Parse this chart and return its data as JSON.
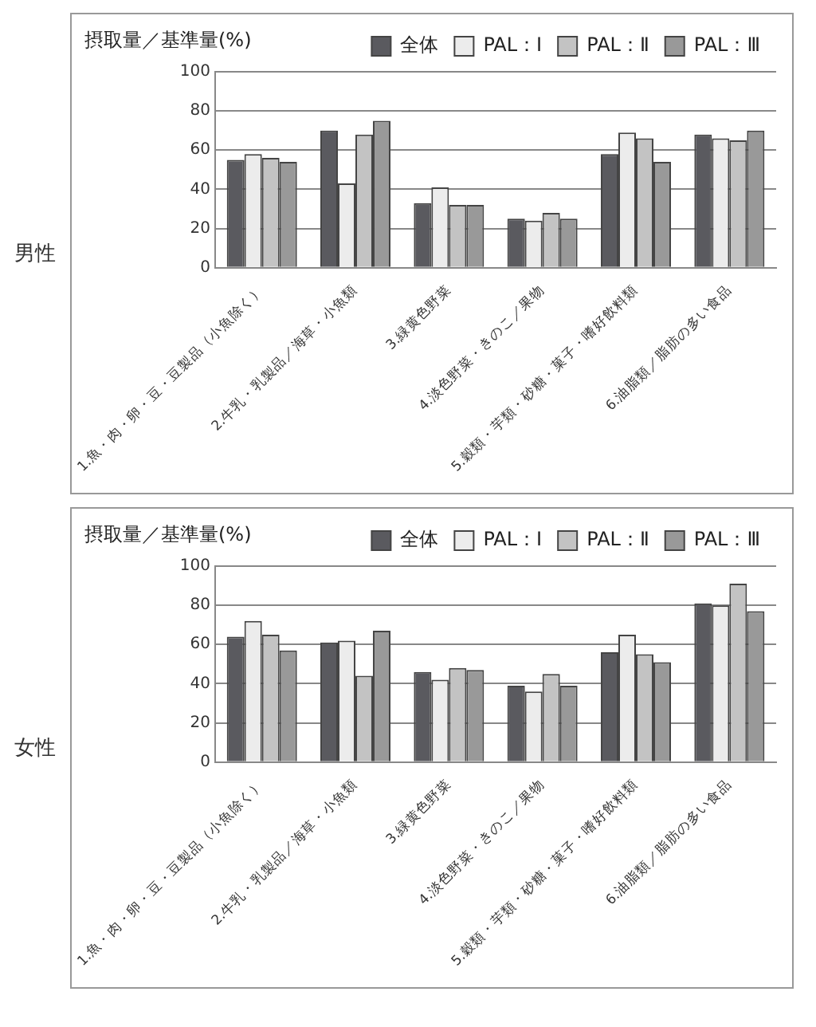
{
  "chart_data": [
    {
      "type": "bar",
      "title": "男性",
      "ylabel": "摂取量／基準量(%)",
      "categories": [
        "1.魚・肉・卵・豆・豆製品（小魚除く）",
        "2.牛乳・乳製品／海草・小魚類",
        "3.緑黄色野菜",
        "4.淡色野菜・きのこ／果物",
        "5.穀類・芋類・砂糖・菓子・嗜好飲料類",
        "6.油脂類／脂肪の多い食品"
      ],
      "series": [
        {
          "name": "全体",
          "color": "#5a5a5f",
          "values": [
            55,
            70,
            33,
            25,
            58,
            68
          ]
        },
        {
          "name": "PAL：Ⅰ",
          "color": "#ececec",
          "values": [
            58,
            43,
            41,
            24,
            69,
            66
          ]
        },
        {
          "name": "PAL：Ⅱ",
          "color": "#c3c3c3",
          "values": [
            56,
            68,
            32,
            28,
            66,
            65
          ]
        },
        {
          "name": "PAL：Ⅲ",
          "color": "#999999",
          "values": [
            54,
            75,
            32,
            25,
            54,
            70
          ]
        }
      ],
      "ylim": [
        0,
        100
      ],
      "yticks": [
        0,
        20,
        40,
        60,
        80,
        100
      ],
      "grid": "y",
      "legend": "top right"
    },
    {
      "type": "bar",
      "title": "女性",
      "ylabel": "摂取量／基準量(%)",
      "categories": [
        "1.魚・肉・卵・豆・豆製品（小魚除く）",
        "2.牛乳・乳製品／海草・小魚類",
        "3.緑黄色野菜",
        "4.淡色野菜・きのこ／果物",
        "5.穀類・芋類・砂糖・菓子・嗜好飲料類",
        "6.油脂類／脂肪の多い食品"
      ],
      "series": [
        {
          "name": "全体",
          "color": "#5a5a5f",
          "values": [
            64,
            61,
            46,
            39,
            56,
            81
          ]
        },
        {
          "name": "PAL：Ⅰ",
          "color": "#ececec",
          "values": [
            72,
            62,
            42,
            36,
            65,
            80
          ]
        },
        {
          "name": "PAL：Ⅱ",
          "color": "#c3c3c3",
          "values": [
            65,
            44,
            48,
            45,
            55,
            91
          ]
        },
        {
          "name": "PAL：Ⅲ",
          "color": "#999999",
          "values": [
            57,
            67,
            47,
            39,
            51,
            77
          ]
        }
      ],
      "ylim": [
        0,
        100
      ],
      "yticks": [
        0,
        20,
        40,
        60,
        80,
        100
      ],
      "grid": "y",
      "legend": "top right"
    }
  ]
}
